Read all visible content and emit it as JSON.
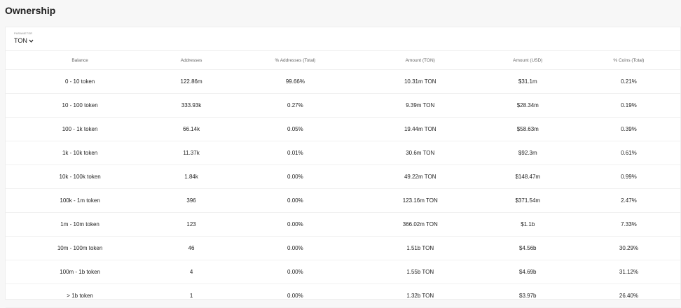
{
  "header": {
    "title": "Ownership"
  },
  "parameter": {
    "label": "PARAMETER",
    "value": "TON"
  },
  "table": {
    "columns": [
      "Balance",
      "Addresses",
      "% Addresses (Total)",
      "Amount (TON)",
      "Amount (USD)",
      "% Coins (Total)"
    ],
    "rows": [
      [
        "0 - 10 token",
        "122.86m",
        "99.66%",
        "10.31m TON",
        "$31.1m",
        "0.21%"
      ],
      [
        "10 - 100 token",
        "333.93k",
        "0.27%",
        "9.39m TON",
        "$28.34m",
        "0.19%"
      ],
      [
        "100 - 1k token",
        "66.14k",
        "0.05%",
        "19.44m TON",
        "$58.63m",
        "0.39%"
      ],
      [
        "1k - 10k token",
        "11.37k",
        "0.01%",
        "30.6m TON",
        "$92.3m",
        "0.61%"
      ],
      [
        "10k - 100k token",
        "1.84k",
        "0.00%",
        "49.22m TON",
        "$148.47m",
        "0.99%"
      ],
      [
        "100k - 1m token",
        "396",
        "0.00%",
        "123.16m TON",
        "$371.54m",
        "2.47%"
      ],
      [
        "1m - 10m token",
        "123",
        "0.00%",
        "366.02m TON",
        "$1.1b",
        "7.33%"
      ],
      [
        "10m - 100m token",
        "46",
        "0.00%",
        "1.51b TON",
        "$4.56b",
        "30.29%"
      ],
      [
        "100m - 1b token",
        "4",
        "0.00%",
        "1.55b TON",
        "$4.69b",
        "31.12%"
      ],
      [
        "> 1b token",
        "1",
        "0.00%",
        "1.32b TON",
        "$3.97b",
        "26.40%"
      ]
    ]
  }
}
